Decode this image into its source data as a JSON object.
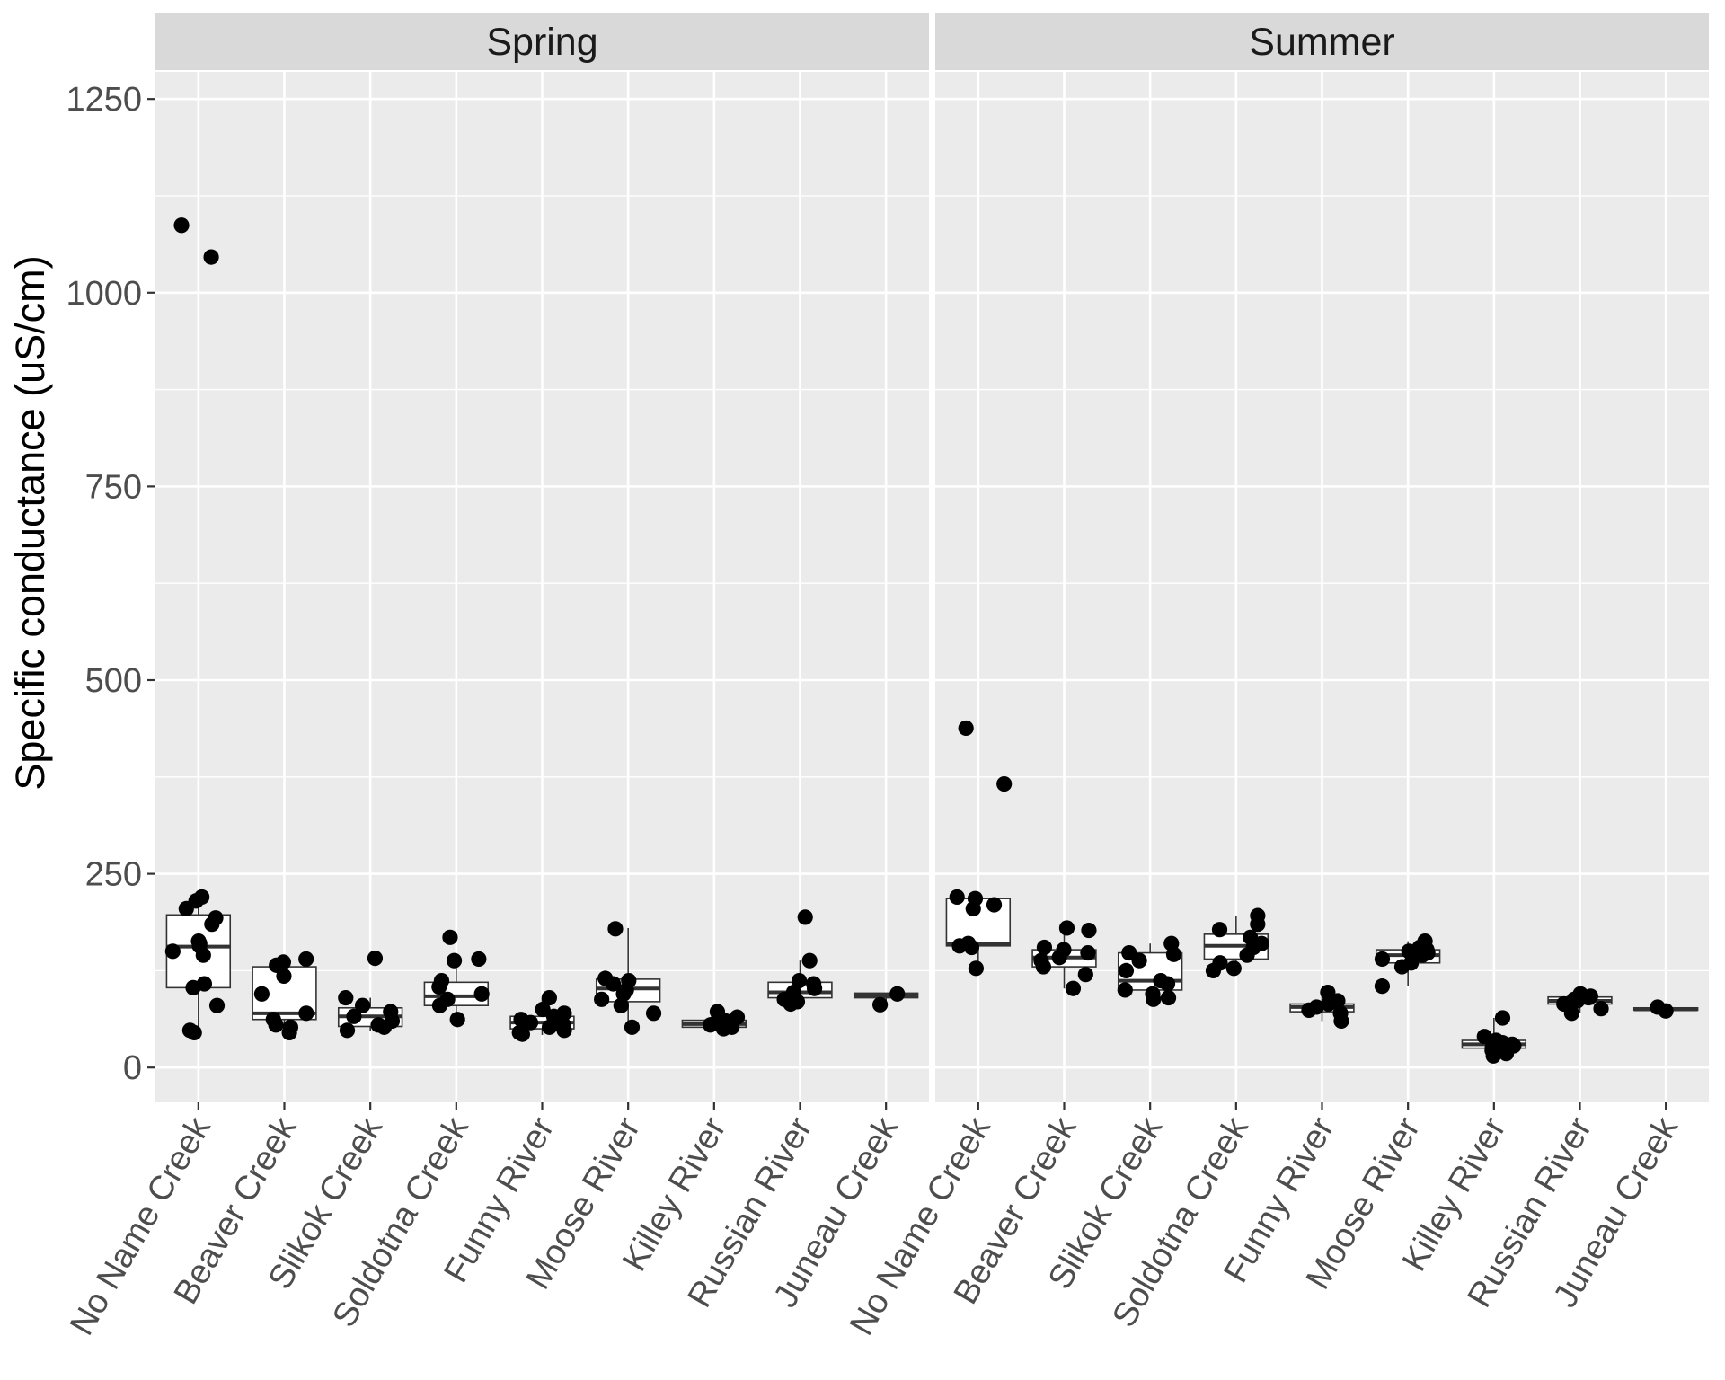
{
  "chart_data": {
    "type": "boxplot-with-jittered-points",
    "ylabel": "Specific conductance (uS/cm)",
    "xlabel": "",
    "ylim": [
      -45,
      1285
    ],
    "yticks": [
      0,
      250,
      500,
      750,
      1000,
      1250
    ],
    "ytick_labels": [
      "0",
      "250",
      "500",
      "750",
      "1000",
      "1250"
    ],
    "categories": [
      "No Name Creek",
      "Beaver Creek",
      "Slikok Creek",
      "Soldotna Creek",
      "Funny River",
      "Moose River",
      "Killey River",
      "Russian River",
      "Juneau Creek"
    ],
    "grid": true,
    "legend": "none",
    "colors": {
      "panel": "#ebebeb",
      "strip": "#d9d9d9",
      "grid": "#ffffff",
      "points": "#000000",
      "box_fill": "#ffffff",
      "box_line": "#333333"
    },
    "facets": [
      {
        "label": "Spring",
        "groups": [
          {
            "site": "No Name Creek",
            "box": {
              "q1": 103,
              "median": 156,
              "q3": 197,
              "lower": 45,
              "upper": 220
            },
            "points": [
              1087,
              1046,
              220,
              215,
              205,
              193,
              185,
              163,
              160,
              157,
              150,
              145,
              108,
              103,
              80,
              48,
              45
            ]
          },
          {
            "site": "Beaver Creek",
            "box": {
              "q1": 62,
              "median": 70,
              "q3": 130,
              "lower": 45,
              "upper": 140
            },
            "points": [
              140,
              136,
              132,
              118,
              95,
              70,
              62,
              55,
              52,
              45
            ]
          },
          {
            "site": "Slikok Creek",
            "box": {
              "q1": 53,
              "median": 66,
              "q3": 77,
              "lower": 47,
              "upper": 90
            },
            "points": [
              141,
              90,
              80,
              72,
              66,
              60,
              55,
              52,
              48
            ]
          },
          {
            "site": "Soldotna Creek",
            "box": {
              "q1": 80,
              "median": 92,
              "q3": 110,
              "lower": 62,
              "upper": 140
            },
            "points": [
              168,
              140,
              138,
              112,
              104,
              95,
              88,
              80,
              62
            ]
          },
          {
            "site": "Funny River",
            "box": {
              "q1": 50,
              "median": 58,
              "q3": 66,
              "lower": 42,
              "upper": 90
            },
            "points": [
              90,
              75,
              70,
              66,
              62,
              58,
              55,
              52,
              48,
              45,
              43
            ]
          },
          {
            "site": "Moose River",
            "box": {
              "q1": 85,
              "median": 102,
              "q3": 114,
              "lower": 52,
              "upper": 180
            },
            "points": [
              179,
              115,
              112,
              108,
              100,
              95,
              88,
              80,
              70,
              52
            ]
          },
          {
            "site": "Killey River",
            "box": {
              "q1": 52,
              "median": 56,
              "q3": 61,
              "lower": 48,
              "upper": 72
            },
            "points": [
              72,
              65,
              60,
              58,
              55,
              52,
              50
            ]
          },
          {
            "site": "Russian River",
            "box": {
              "q1": 90,
              "median": 97,
              "q3": 110,
              "lower": 82,
              "upper": 138
            },
            "points": [
              194,
              138,
              112,
              108,
              102,
              97,
              92,
              88,
              85,
              82
            ]
          },
          {
            "site": "Juneau Creek",
            "box": {
              "q1": 90,
              "median": 93,
              "q3": 96,
              "lower": 84,
              "upper": 96
            },
            "points": [
              95,
              81
            ]
          }
        ]
      },
      {
        "label": "Summer",
        "groups": [
          {
            "site": "No Name Creek",
            "box": {
              "q1": 157,
              "median": 160,
              "q3": 218,
              "lower": 128,
              "upper": 220
            },
            "points": [
              438,
              366,
              220,
              218,
              210,
              205,
              160,
              157,
              155,
              128
            ]
          },
          {
            "site": "Beaver Creek",
            "box": {
              "q1": 130,
              "median": 142,
              "q3": 152,
              "lower": 102,
              "upper": 178
            },
            "points": [
              180,
              177,
              155,
              152,
              148,
              142,
              138,
              130,
              120,
              102
            ]
          },
          {
            "site": "Slikok Creek",
            "box": {
              "q1": 100,
              "median": 112,
              "q3": 148,
              "lower": 88,
              "upper": 160
            },
            "points": [
              160,
              148,
              146,
              138,
              125,
              112,
              108,
              100,
              95,
              90,
              88
            ]
          },
          {
            "site": "Soldotna Creek",
            "box": {
              "q1": 140,
              "median": 157,
              "q3": 172,
              "lower": 125,
              "upper": 196
            },
            "points": [
              196,
              185,
              178,
              168,
              160,
              155,
              145,
              135,
              128,
              125
            ]
          },
          {
            "site": "Funny River",
            "box": {
              "q1": 72,
              "median": 78,
              "q3": 82,
              "lower": 60,
              "upper": 97
            },
            "points": [
              97,
              86,
              82,
              78,
              74,
              70,
              60
            ]
          },
          {
            "site": "Moose River",
            "box": {
              "q1": 135,
              "median": 145,
              "q3": 152,
              "lower": 105,
              "upper": 163
            },
            "points": [
              163,
              155,
              152,
              150,
              148,
              145,
              140,
              135,
              130,
              105
            ]
          },
          {
            "site": "Killey River",
            "box": {
              "q1": 25,
              "median": 30,
              "q3": 35,
              "lower": 15,
              "upper": 64
            },
            "points": [
              64,
              40,
              35,
              32,
              30,
              28,
              25,
              22,
              18,
              15
            ]
          },
          {
            "site": "Russian River",
            "box": {
              "q1": 82,
              "median": 86,
              "q3": 91,
              "lower": 70,
              "upper": 95
            },
            "points": [
              95,
              92,
              90,
              88,
              86,
              82,
              76,
              70
            ]
          },
          {
            "site": "Juneau Creek",
            "box": {
              "q1": 74,
              "median": 75,
              "q3": 77,
              "lower": 73,
              "upper": 78
            },
            "points": [
              78,
              73
            ]
          }
        ]
      }
    ]
  }
}
